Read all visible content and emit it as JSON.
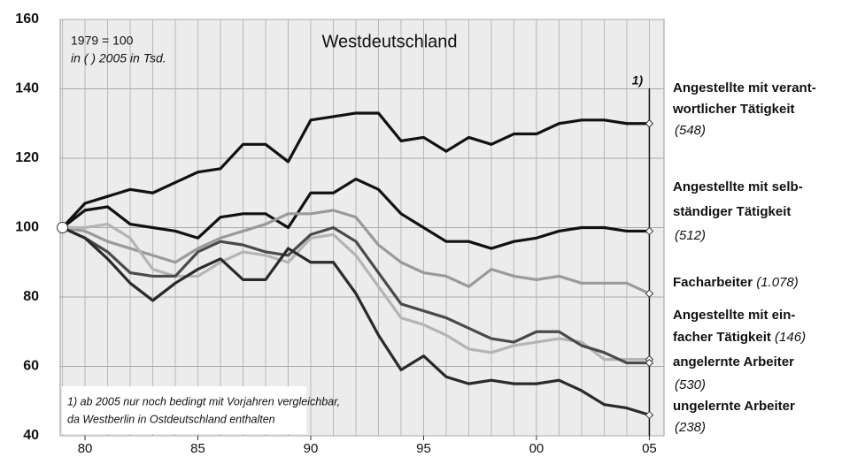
{
  "chart_data": {
    "type": "line",
    "title": "Westdeutschland",
    "base_note": "1979 = 100",
    "unit_note": "in ( ) 2005 in Tsd.",
    "break_marker": "1)",
    "break_x": 2005,
    "footnote": [
      "1) ab 2005 nur noch bedingt mit Vorjahren vergleichbar,",
      "da Westberlin in Ostdeutschland enthalten"
    ],
    "x": [
      1979,
      1980,
      1981,
      1982,
      1983,
      1984,
      1985,
      1986,
      1987,
      1988,
      1989,
      1990,
      1991,
      1992,
      1993,
      1994,
      1995,
      1996,
      1997,
      1998,
      1999,
      2000,
      2001,
      2002,
      2003,
      2004,
      2005
    ],
    "xlim": [
      1978.9,
      2005.65
    ],
    "xticks": [
      {
        "value": 1980,
        "label": "80"
      },
      {
        "value": 1985,
        "label": "85"
      },
      {
        "value": 1990,
        "label": "90"
      },
      {
        "value": 1995,
        "label": "95"
      },
      {
        "value": 2000,
        "label": "00"
      },
      {
        "value": 2005,
        "label": "05"
      }
    ],
    "xgrid": [
      1979,
      1980,
      1981,
      1982,
      1983,
      1984,
      1985,
      1986,
      1987,
      1988,
      1989,
      1990,
      1991,
      1992,
      1993,
      1994,
      1995,
      1996,
      1997,
      1998,
      1999,
      2000,
      2001,
      2002,
      2003,
      2004,
      2005
    ],
    "ylim": [
      40,
      160
    ],
    "yticks": [
      40,
      60,
      80,
      100,
      120,
      140,
      160
    ],
    "grid": true,
    "series": [
      {
        "name_lines": [
          "Angestellte mit verant-",
          "wortlicher Tätigkeit"
        ],
        "count": "(548)",
        "count_inline": false,
        "color": "#111111",
        "label_color": "#111111",
        "values": [
          100,
          107,
          109,
          111,
          110,
          113,
          116,
          117,
          124,
          124,
          119,
          131,
          132,
          133,
          133,
          125,
          126,
          122,
          126,
          124,
          127,
          127,
          130,
          131,
          131,
          130,
          130
        ]
      },
      {
        "name_lines": [
          "Angestellte mit selb-",
          "ständiger Tätigkeit"
        ],
        "count": "(512)",
        "count_inline": false,
        "color": "#111111",
        "label_color": "#111111",
        "values": [
          100,
          105,
          106,
          101,
          100,
          99,
          97,
          103,
          104,
          104,
          100,
          110,
          110,
          114,
          111,
          104,
          100,
          96,
          96,
          94,
          96,
          97,
          99,
          100,
          100,
          99,
          99
        ]
      },
      {
        "name_lines": [
          "Facharbeiter"
        ],
        "count": "(1.078)",
        "count_inline": true,
        "color": "#9a9a9a",
        "label_color": "#aaaaaa",
        "values": [
          100,
          99,
          96,
          94,
          92,
          90,
          94,
          97,
          99,
          101,
          104,
          104,
          105,
          103,
          95,
          90,
          87,
          86,
          83,
          88,
          86,
          85,
          86,
          84,
          84,
          84,
          81
        ]
      },
      {
        "name_lines": [
          "Angestellte mit ein-",
          "facher Tätigkeit"
        ],
        "count": "(146)",
        "count_inline": true,
        "color": "#b4b4b4",
        "label_color": "#999999",
        "values": [
          100,
          100,
          101,
          97,
          88,
          86,
          86,
          90,
          93,
          92,
          90,
          97,
          98,
          92,
          83,
          74,
          72,
          69,
          65,
          64,
          66,
          67,
          68,
          67,
          62,
          62,
          62
        ]
      },
      {
        "name_lines": [
          "angelernte Arbeiter"
        ],
        "count": "(530)",
        "count_inline": false,
        "color": "#4a4a4a",
        "label_color": "#333333",
        "values": [
          100,
          97,
          93,
          87,
          86,
          86,
          93,
          96,
          95,
          93,
          92,
          98,
          100,
          96,
          87,
          78,
          76,
          74,
          71,
          68,
          67,
          70,
          70,
          66,
          64,
          61,
          61
        ]
      },
      {
        "name_lines": [
          "ungelernte Arbeiter"
        ],
        "count": "(238)",
        "count_inline": false,
        "color": "#2a2a2a",
        "label_color": "#111111",
        "values": [
          100,
          97,
          91,
          84,
          79,
          84,
          88,
          91,
          85,
          85,
          94,
          90,
          90,
          81,
          69,
          59,
          63,
          57,
          55,
          56,
          55,
          55,
          56,
          53,
          49,
          48,
          46
        ]
      }
    ]
  }
}
